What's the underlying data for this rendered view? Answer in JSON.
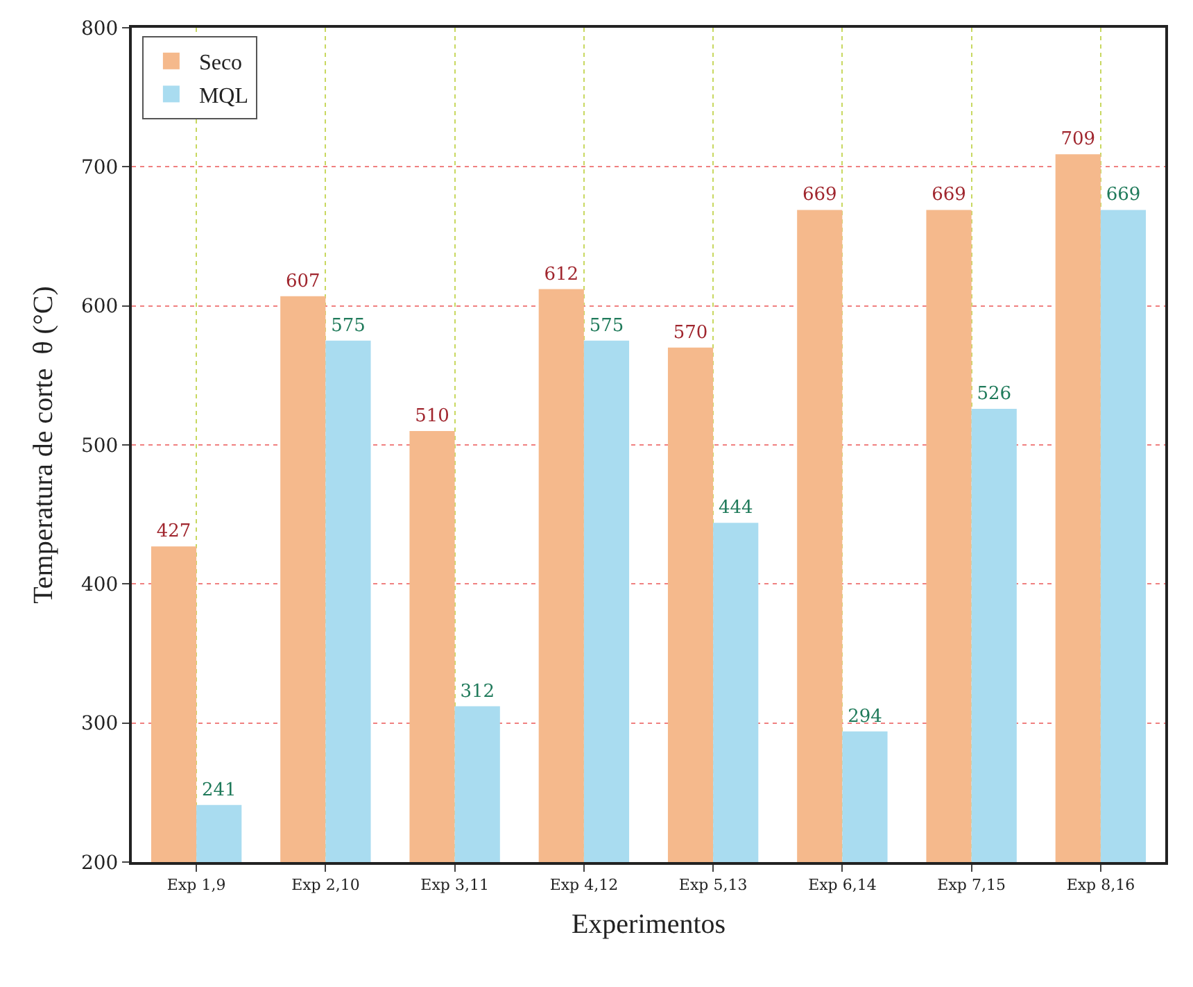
{
  "chart_data": {
    "type": "bar",
    "xlabel": "Experimentos",
    "ylabel": "Temperatura de corte  θ (°C)",
    "categories": [
      "Exp 1,9",
      "Exp 2,10",
      "Exp 3,11",
      "Exp 4,12",
      "Exp 5,13",
      "Exp 6,14",
      "Exp 7,15",
      "Exp 8,16"
    ],
    "series": [
      {
        "name": "Seco",
        "color": "#f5b98c",
        "values": [
          427,
          607,
          510,
          612,
          570,
          669,
          669,
          709
        ]
      },
      {
        "name": "MQL",
        "color": "#a9dcf0",
        "values": [
          241,
          575,
          312,
          575,
          444,
          294,
          526,
          669
        ]
      }
    ],
    "ylim": [
      200,
      800
    ],
    "yticks": [
      200,
      300,
      400,
      500,
      600,
      700,
      800
    ],
    "grid": true,
    "legend": "top left",
    "data_labels": true
  }
}
